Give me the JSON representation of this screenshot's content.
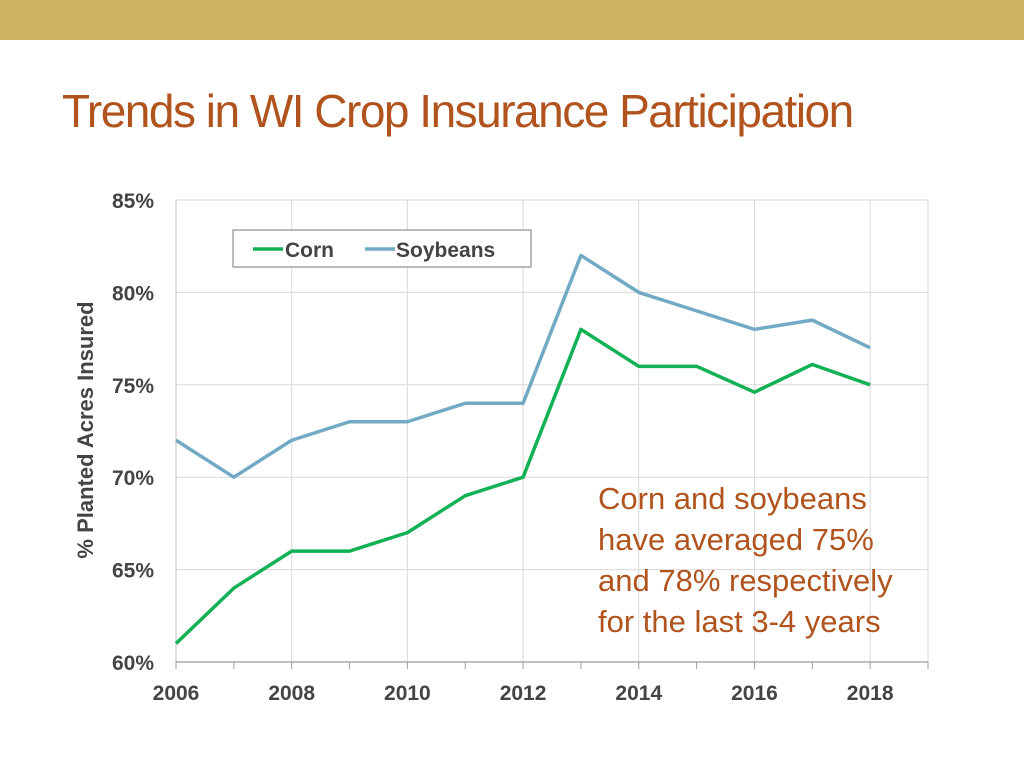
{
  "slide": {
    "title": "Trends in WI Crop Insurance Participation"
  },
  "colors": {
    "band": "#cdb462",
    "title": "#b1531d",
    "corn": "#12b155",
    "soybeans": "#72aac6"
  },
  "chart_data": {
    "type": "line",
    "title": "",
    "xlabel": "",
    "ylabel": "% Planted Acres Insured",
    "x": [
      2006,
      2007,
      2008,
      2009,
      2010,
      2011,
      2012,
      2013,
      2014,
      2015,
      2016,
      2017,
      2018
    ],
    "xticks": [
      "2006",
      "2008",
      "2010",
      "2012",
      "2014",
      "2016",
      "2018"
    ],
    "xlim": [
      2006,
      2019
    ],
    "ylim": [
      60,
      85
    ],
    "yticks": [
      "60%",
      "65%",
      "70%",
      "75%",
      "80%",
      "85%"
    ],
    "grid": true,
    "legend": "top-left",
    "series": [
      {
        "name": "Corn",
        "color": "#12b155",
        "values": [
          61,
          64,
          66,
          66,
          67,
          69,
          70,
          78,
          76,
          76,
          74.6,
          76.1,
          75
        ]
      },
      {
        "name": "Soybeans",
        "color": "#72aac6",
        "values": [
          72,
          70,
          72,
          73,
          73,
          74,
          74,
          82,
          80,
          79,
          78,
          78.5,
          77
        ]
      }
    ],
    "annotation": [
      "Corn and soybeans",
      "have averaged 75%",
      "and 78% respectively",
      "for the last 3-4 years"
    ]
  }
}
